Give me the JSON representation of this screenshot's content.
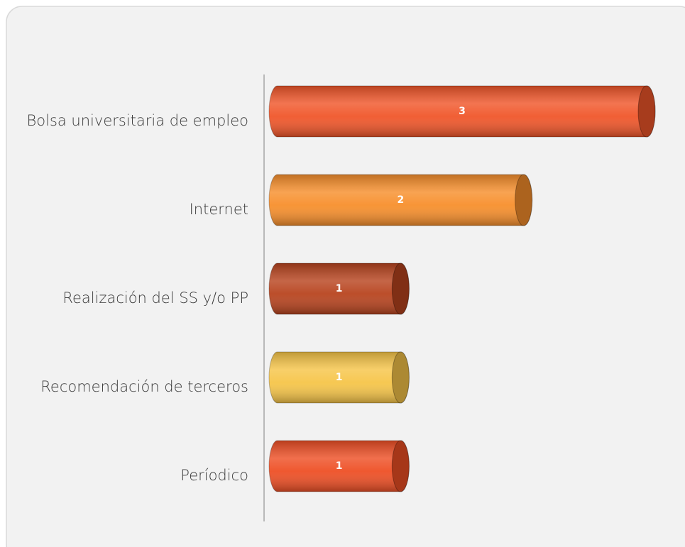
{
  "chart_data": {
    "type": "hbar-cylinder",
    "categories": [
      "Bolsa universitaria de empleo",
      "Internet",
      "Realización del SS y/o PP",
      "Recomendación de terceros",
      "Períodico"
    ],
    "values": [
      3,
      2,
      1,
      1,
      1
    ],
    "colors": [
      "#f0562a",
      "#f78f2c",
      "#b8441f",
      "#f6c549",
      "#ee4f25"
    ],
    "xlim": [
      0,
      3
    ]
  }
}
